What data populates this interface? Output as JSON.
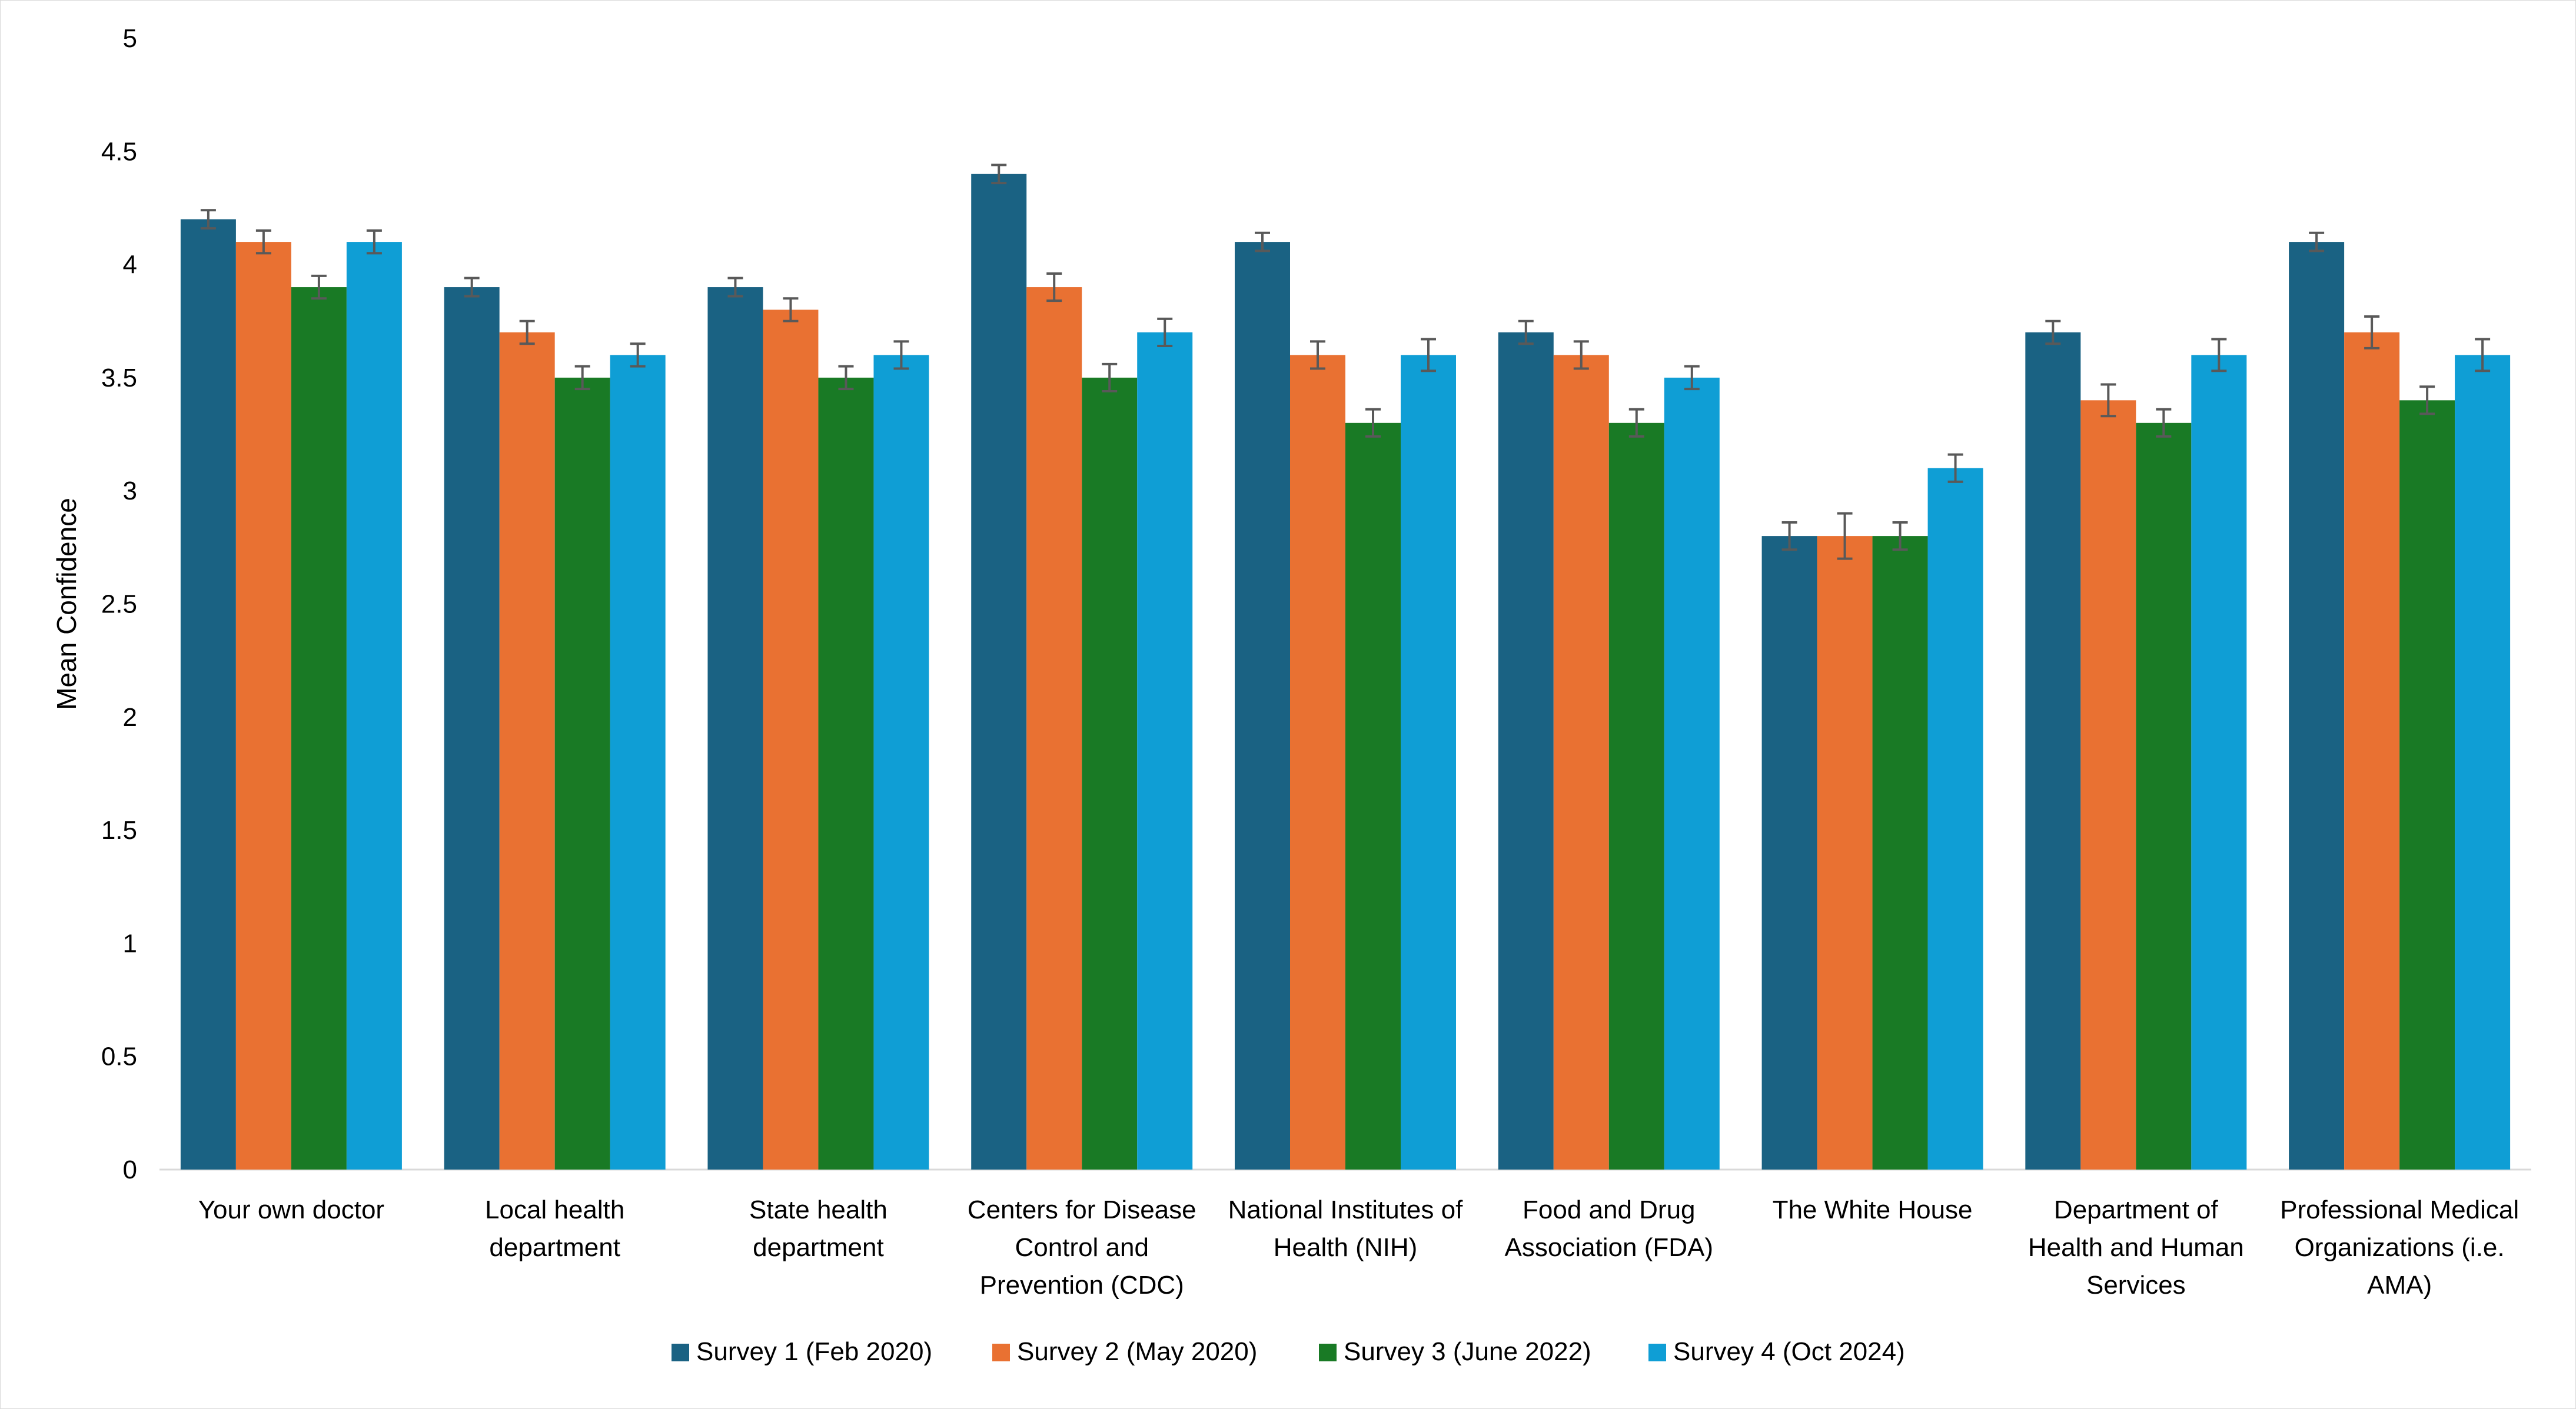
{
  "chart_data": {
    "type": "bar",
    "title": "",
    "xlabel": "",
    "ylabel": "Mean Confidence",
    "ylim": [
      0,
      5
    ],
    "y_ticks": [
      "0",
      "0.5",
      "1",
      "1.5",
      "2",
      "2.5",
      "3",
      "3.5",
      "4",
      "4.5",
      "5"
    ],
    "grid": false,
    "legend_position": "bottom",
    "error_bars": true,
    "categories": [
      [
        "Your own doctor"
      ],
      [
        "Local health",
        "department"
      ],
      [
        "State health",
        "department"
      ],
      [
        "Centers for Disease",
        "Control and",
        "Prevention (CDC)"
      ],
      [
        "National Institutes of",
        "Health (NIH)"
      ],
      [
        "Food and Drug",
        "Association (FDA)"
      ],
      [
        "The White House"
      ],
      [
        "Department of",
        "Health and Human",
        "Services"
      ],
      [
        "Professional Medical",
        "Organizations (i.e.",
        "AMA)"
      ]
    ],
    "series": [
      {
        "name": "Survey 1 (Feb 2020)",
        "color": "#1a6283",
        "values": [
          4.2,
          3.9,
          3.9,
          4.4,
          4.1,
          3.7,
          2.8,
          3.7,
          4.1
        ],
        "errors": [
          0.04,
          0.04,
          0.04,
          0.04,
          0.04,
          0.05,
          0.06,
          0.05,
          0.04
        ]
      },
      {
        "name": "Survey 2 (May 2020)",
        "color": "#e97132",
        "values": [
          4.1,
          3.7,
          3.8,
          3.9,
          3.6,
          3.6,
          2.8,
          3.4,
          3.7
        ],
        "errors": [
          0.05,
          0.05,
          0.05,
          0.06,
          0.06,
          0.06,
          0.1,
          0.07,
          0.07
        ]
      },
      {
        "name": "Survey 3 (June 2022)",
        "color": "#197a25",
        "values": [
          3.9,
          3.5,
          3.5,
          3.5,
          3.3,
          3.3,
          2.8,
          3.3,
          3.4
        ],
        "errors": [
          0.05,
          0.05,
          0.05,
          0.06,
          0.06,
          0.06,
          0.06,
          0.06,
          0.06
        ]
      },
      {
        "name": "Survey 4 (Oct 2024)",
        "color": "#0f9ed5",
        "values": [
          4.1,
          3.6,
          3.6,
          3.7,
          3.6,
          3.5,
          3.1,
          3.6,
          3.6
        ],
        "errors": [
          0.05,
          0.05,
          0.06,
          0.06,
          0.07,
          0.05,
          0.06,
          0.07,
          0.07
        ]
      }
    ]
  }
}
